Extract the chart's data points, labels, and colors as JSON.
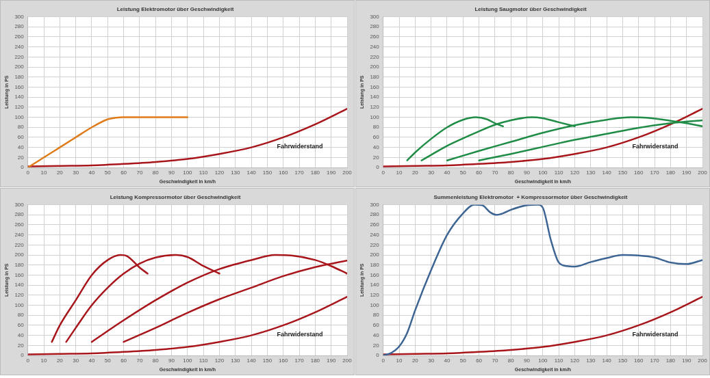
{
  "chart_data": [
    {
      "type": "line",
      "title": "Leistung Elektromotor über Geschwindigkeit",
      "xlabel": "Geschwindigkeit in km/h",
      "ylabel": "Leistung in PS",
      "xlim": [
        0,
        200
      ],
      "xticks": [
        0,
        10,
        20,
        30,
        40,
        50,
        60,
        70,
        80,
        90,
        100,
        110,
        120,
        130,
        140,
        150,
        160,
        170,
        180,
        190,
        200
      ],
      "ylim": [
        0,
        300
      ],
      "yticks": [
        0,
        20,
        40,
        60,
        80,
        100,
        120,
        140,
        160,
        180,
        200,
        220,
        240,
        260,
        280,
        300
      ],
      "grid": true,
      "legend": false,
      "marker": "none",
      "line_style": "solid",
      "series": [
        {
          "color": "#e07b1a",
          "x": [
            0,
            10,
            20,
            30,
            40,
            50,
            55,
            60,
            70,
            100
          ],
          "values": [
            0,
            20,
            40,
            60,
            80,
            96,
            99,
            100,
            100,
            100
          ]
        },
        {
          "color": "#a8161c",
          "x": [
            0,
            20,
            40,
            60,
            80,
            100,
            120,
            140,
            160,
            180,
            200
          ],
          "values": [
            2,
            3,
            4,
            7,
            11,
            17,
            27,
            40,
            60,
            86,
            117
          ]
        }
      ],
      "annotations": [
        "Fahrwiderstand"
      ]
    },
    {
      "type": "line",
      "title": "Leistung Saugmotor über Geschwindigkeit",
      "xlabel": "Geschwindigkeit in km/h",
      "ylabel": "Leistung in PS",
      "xlim": [
        0,
        200
      ],
      "xticks": [
        0,
        10,
        20,
        30,
        40,
        50,
        60,
        70,
        80,
        90,
        100,
        110,
        120,
        130,
        140,
        150,
        160,
        170,
        180,
        190,
        200
      ],
      "ylim": [
        0,
        300
      ],
      "yticks": [
        0,
        20,
        40,
        60,
        80,
        100,
        120,
        140,
        160,
        180,
        200,
        220,
        240,
        260,
        280,
        300
      ],
      "grid": true,
      "legend": false,
      "marker": "none",
      "line_style": "solid",
      "series": [
        {
          "color": "#1e8c45",
          "x": [
            15,
            20,
            30,
            40,
            50,
            58,
            65,
            70,
            75
          ],
          "values": [
            14,
            30,
            57,
            80,
            95,
            100,
            96,
            88,
            82
          ]
        },
        {
          "color": "#1e8c45",
          "x": [
            24,
            30,
            40,
            50,
            60,
            70,
            80,
            93,
            100,
            110,
            120
          ],
          "values": [
            14,
            25,
            43,
            58,
            72,
            85,
            94,
            100,
            98,
            90,
            82
          ]
        },
        {
          "color": "#1e8c45",
          "x": [
            40,
            60,
            80,
            100,
            120,
            140,
            155,
            165,
            180,
            190,
            200
          ],
          "values": [
            14,
            33,
            51,
            69,
            84,
            95,
            100,
            99,
            93,
            88,
            82
          ]
        },
        {
          "color": "#1e8c45",
          "x": [
            60,
            80,
            100,
            120,
            140,
            160,
            180,
            200
          ],
          "values": [
            14,
            27,
            41,
            55,
            67,
            79,
            88,
            94
          ]
        },
        {
          "color": "#a8161c",
          "x": [
            0,
            20,
            40,
            60,
            80,
            100,
            120,
            140,
            160,
            180,
            200
          ],
          "values": [
            2,
            3,
            4,
            7,
            11,
            17,
            27,
            40,
            60,
            86,
            117
          ]
        }
      ],
      "annotations": [
        "Fahrwiderstand"
      ]
    },
    {
      "type": "line",
      "title": "Leistung Kompressormotor über Geschwindigkeit",
      "xlabel": "Geschwindigkeit in km/h",
      "ylabel": "Leistung in PS",
      "xlim": [
        0,
        200
      ],
      "xticks": [
        0,
        10,
        20,
        30,
        40,
        50,
        60,
        70,
        80,
        90,
        100,
        110,
        120,
        130,
        140,
        150,
        160,
        170,
        180,
        190,
        200
      ],
      "ylim": [
        0,
        300
      ],
      "yticks": [
        0,
        20,
        40,
        60,
        80,
        100,
        120,
        140,
        160,
        180,
        200,
        220,
        240,
        260,
        280,
        300
      ],
      "grid": true,
      "legend": false,
      "marker": "none",
      "line_style": "solid",
      "series": [
        {
          "color": "#a8161c",
          "x": [
            15,
            20,
            30,
            40,
            50,
            58,
            62,
            70,
            75
          ],
          "values": [
            27,
            60,
            110,
            160,
            190,
            200,
            198,
            175,
            163
          ]
        },
        {
          "color": "#a8161c",
          "x": [
            24,
            30,
            40,
            50,
            60,
            70,
            80,
            93,
            100,
            110,
            120
          ],
          "values": [
            27,
            55,
            100,
            135,
            163,
            183,
            195,
            200,
            196,
            178,
            163
          ]
        },
        {
          "color": "#a8161c",
          "x": [
            40,
            60,
            80,
            100,
            120,
            140,
            155,
            165,
            180,
            190,
            200
          ],
          "values": [
            27,
            70,
            110,
            145,
            172,
            190,
            200,
            199,
            190,
            178,
            163
          ]
        },
        {
          "color": "#a8161c",
          "x": [
            60,
            80,
            100,
            120,
            140,
            160,
            180,
            200
          ],
          "values": [
            27,
            55,
            85,
            112,
            135,
            158,
            176,
            189
          ]
        },
        {
          "color": "#a8161c",
          "x": [
            0,
            20,
            40,
            60,
            80,
            100,
            120,
            140,
            160,
            180,
            200
          ],
          "values": [
            2,
            3,
            4,
            7,
            11,
            17,
            27,
            40,
            60,
            86,
            117
          ]
        }
      ],
      "annotations": [
        "Fahrwiderstand"
      ]
    },
    {
      "type": "line",
      "title": "Summenleistung Elektromotor  + Kompressormotor über Geschwindigkeit",
      "xlabel": "Geschwindigkeit in km/h",
      "ylabel": "Leistung in PS",
      "xlim": [
        0,
        200
      ],
      "xticks": [
        0,
        10,
        20,
        30,
        40,
        50,
        60,
        70,
        80,
        90,
        100,
        110,
        120,
        130,
        140,
        150,
        160,
        170,
        180,
        190,
        200
      ],
      "ylim": [
        0,
        300
      ],
      "yticks": [
        0,
        20,
        40,
        60,
        80,
        100,
        120,
        140,
        160,
        180,
        200,
        220,
        240,
        260,
        280,
        300
      ],
      "grid": true,
      "legend": false,
      "marker": "none",
      "line_style": "solid",
      "series": [
        {
          "color": "#3d6594",
          "x": [
            0,
            5,
            10,
            15,
            20,
            30,
            40,
            50,
            57,
            62,
            67,
            71,
            75,
            80,
            90,
            97,
            100,
            105,
            110,
            115,
            120,
            130,
            140,
            150,
            160,
            170,
            180,
            190,
            200
          ],
          "values": [
            0,
            5,
            18,
            45,
            90,
            170,
            240,
            283,
            300,
            299,
            285,
            280,
            283,
            290,
            299,
            300,
            294,
            230,
            185,
            178,
            177,
            186,
            194,
            200,
            199,
            195,
            185,
            182,
            190
          ]
        },
        {
          "color": "#a8161c",
          "x": [
            0,
            20,
            40,
            60,
            80,
            100,
            120,
            140,
            160,
            180,
            200
          ],
          "values": [
            2,
            3,
            4,
            7,
            11,
            17,
            27,
            40,
            60,
            86,
            117
          ]
        }
      ],
      "annotations": [
        "Fahrwiderstand"
      ]
    }
  ]
}
